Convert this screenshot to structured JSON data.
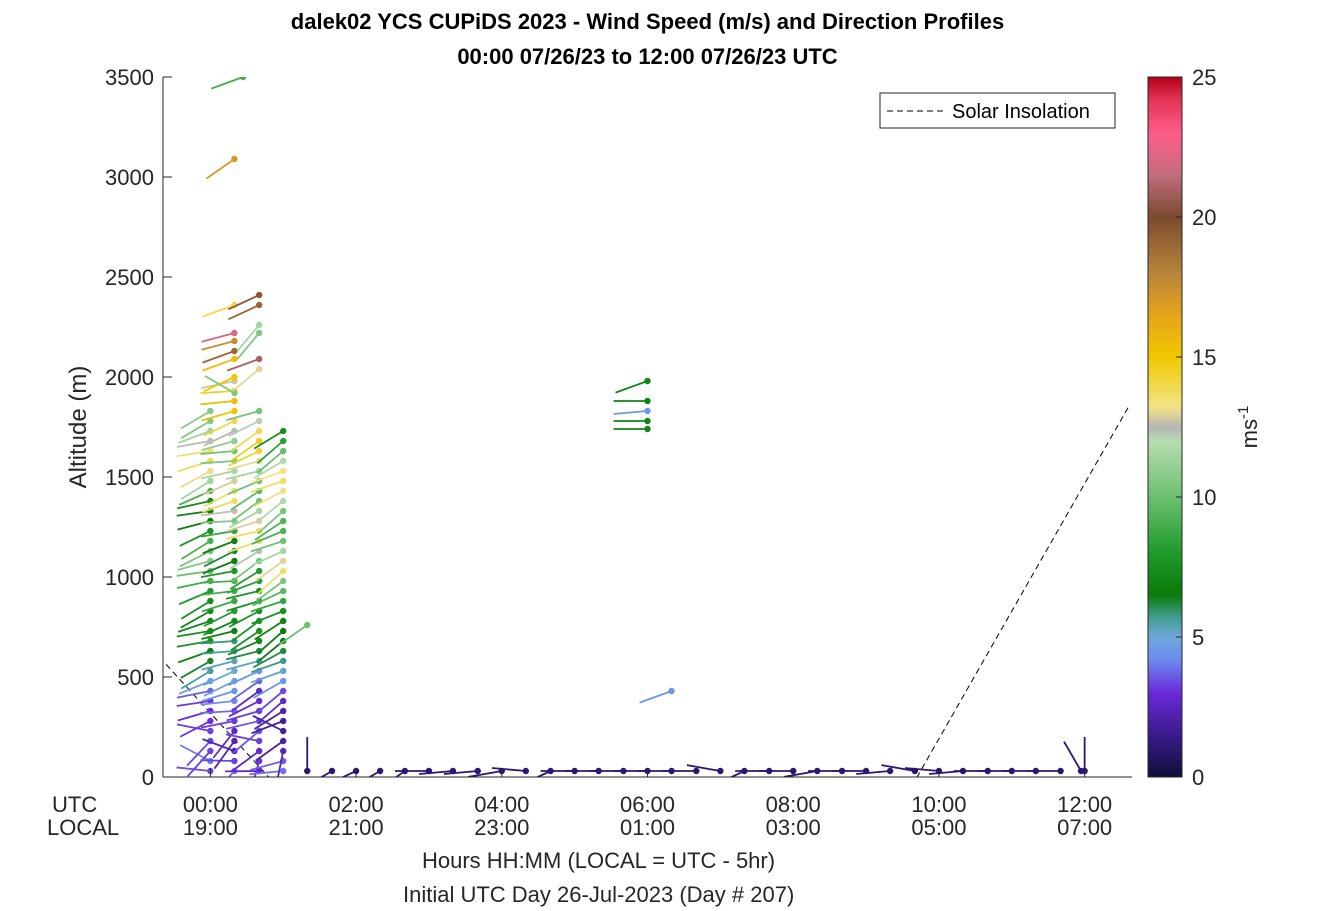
{
  "title": "dalek02 YCS CUPiDS 2023 - Wind Speed (m/s) and Direction Profiles",
  "subtitle": "00:00 07/26/23 to 12:00 07/26/23  UTC",
  "row_labels": {
    "utc": "UTC",
    "local": "LOCAL"
  },
  "xlabel": "Hours HH:MM  (LOCAL = UTC - 5hr)",
  "xlabel2": "Initial UTC Day 26-Jul-2023 (Day # 207)",
  "legend": {
    "label": "Solar Insolation"
  },
  "colorbar": {
    "label": "ms",
    "exponent": "-1",
    "min": 0,
    "max": 25,
    "ticks": [
      "0",
      "5",
      "10",
      "15",
      "20",
      "25"
    ]
  },
  "chart_data": {
    "type": "scatter",
    "ylabel": "Altitude (m)",
    "ylim": [
      0,
      3500
    ],
    "xlim_hours": [
      -0.65,
      12.65
    ],
    "yticks": [
      "0",
      "500",
      "1000",
      "1500",
      "2000",
      "2500",
      "3000",
      "3500"
    ],
    "xticks_utc": [
      "00:00",
      "02:00",
      "04:00",
      "06:00",
      "08:00",
      "10:00",
      "12:00"
    ],
    "xticks_local": [
      "19:00",
      "21:00",
      "23:00",
      "01:00",
      "03:00",
      "05:00",
      "07:00"
    ],
    "solar_insolation": [
      {
        "utc": -0.7,
        "alt": 600
      },
      {
        "utc": 0.8,
        "alt": 0
      },
      {
        "utc": 9.7,
        "alt": 0
      },
      {
        "utc": 12.6,
        "alt": 1850
      }
    ],
    "profiles": [
      {
        "utc": 0.0,
        "alt_min": 30,
        "alt_max": 1830,
        "step": 50,
        "dir": 250
      },
      {
        "utc": 0.33,
        "alt_min": 30,
        "alt_max": 2000,
        "step": 50,
        "dir": 255
      },
      {
        "utc": 0.67,
        "alt_min": 30,
        "alt_max": 1830,
        "step": 50,
        "dir": 245
      },
      {
        "utc": 1.0,
        "alt_min": 30,
        "alt_max": 1730,
        "step": 50,
        "dir": 240
      }
    ],
    "upper_points": [
      {
        "utc": 0.33,
        "alt": 2360,
        "speed": 14.0,
        "dir": 250
      },
      {
        "utc": 0.33,
        "alt": 2220,
        "speed": 22.0,
        "dir": 255
      },
      {
        "utc": 0.33,
        "alt": 2180,
        "speed": 17.5,
        "dir": 255
      },
      {
        "utc": 0.33,
        "alt": 2130,
        "speed": 19.0,
        "dir": 250
      },
      {
        "utc": 0.33,
        "alt": 2090,
        "speed": 15.5,
        "dir": 250
      },
      {
        "utc": 0.33,
        "alt": 2000,
        "speed": 15.0,
        "dir": 245
      },
      {
        "utc": 0.33,
        "alt": 1920,
        "speed": 10.5,
        "dir": 300
      },
      {
        "utc": 0.67,
        "alt": 2410,
        "speed": 19.5,
        "dir": 245
      },
      {
        "utc": 0.67,
        "alt": 2360,
        "speed": 19.0,
        "dir": 245
      },
      {
        "utc": 0.67,
        "alt": 2260,
        "speed": 11.5,
        "dir": 220
      },
      {
        "utc": 0.67,
        "alt": 2220,
        "speed": 10.5,
        "dir": 220
      },
      {
        "utc": 0.67,
        "alt": 2090,
        "speed": 21.0,
        "dir": 250
      },
      {
        "utc": 0.67,
        "alt": 2040,
        "speed": 13.0,
        "dir": 230
      },
      {
        "utc": 0.33,
        "alt": 3090,
        "speed": 17.0,
        "dir": 235
      },
      {
        "utc": 0.45,
        "alt": 3500,
        "speed": 9.0,
        "dir": 250
      },
      {
        "utc": 1.33,
        "alt": 760,
        "speed": 10.0,
        "dir": 235
      },
      {
        "utc": 6.0,
        "alt": 1980,
        "speed": 7.0,
        "dir": 250
      },
      {
        "utc": 6.0,
        "alt": 1880,
        "speed": 7.0,
        "dir": 270
      },
      {
        "utc": 6.0,
        "alt": 1830,
        "speed": 4.5,
        "dir": 265
      },
      {
        "utc": 6.0,
        "alt": 1780,
        "speed": 7.0,
        "dir": 270
      },
      {
        "utc": 6.0,
        "alt": 1740,
        "speed": 7.0,
        "dir": 270
      },
      {
        "utc": 6.33,
        "alt": 430,
        "speed": 4.5,
        "dir": 250
      }
    ],
    "surface": [
      {
        "utc": 1.33,
        "alt": 30,
        "speed": 1.0,
        "dir": 0
      },
      {
        "utc": 1.67,
        "alt": 30,
        "speed": 1.0,
        "dir": 240
      },
      {
        "utc": 2.0,
        "alt": 30,
        "speed": 1.0,
        "dir": 245
      },
      {
        "utc": 2.33,
        "alt": 30,
        "speed": 1.0,
        "dir": 240
      },
      {
        "utc": 2.67,
        "alt": 30,
        "speed": 1.0,
        "dir": 235
      },
      {
        "utc": 3.0,
        "alt": 30,
        "speed": 1.0,
        "dir": 270
      },
      {
        "utc": 3.33,
        "alt": 30,
        "speed": 1.0,
        "dir": 265
      },
      {
        "utc": 3.67,
        "alt": 30,
        "speed": 1.0,
        "dir": 265
      },
      {
        "utc": 4.0,
        "alt": 30,
        "speed": 1.0,
        "dir": 260
      },
      {
        "utc": 4.33,
        "alt": 30,
        "speed": 1.0,
        "dir": 275
      },
      {
        "utc": 4.67,
        "alt": 30,
        "speed": 1.0,
        "dir": 245
      },
      {
        "utc": 5.0,
        "alt": 30,
        "speed": 1.0,
        "dir": 270
      },
      {
        "utc": 5.33,
        "alt": 30,
        "speed": 1.0,
        "dir": 270
      },
      {
        "utc": 5.67,
        "alt": 30,
        "speed": 1.0,
        "dir": 270
      },
      {
        "utc": 6.0,
        "alt": 30,
        "speed": 1.0,
        "dir": 270
      },
      {
        "utc": 6.33,
        "alt": 30,
        "speed": 1.0,
        "dir": 270
      },
      {
        "utc": 6.67,
        "alt": 30,
        "speed": 1.0,
        "dir": 270
      },
      {
        "utc": 7.0,
        "alt": 30,
        "speed": 1.0,
        "dir": 280
      },
      {
        "utc": 7.33,
        "alt": 30,
        "speed": 1.0,
        "dir": 245
      },
      {
        "utc": 7.67,
        "alt": 30,
        "speed": 1.0,
        "dir": 270
      },
      {
        "utc": 8.0,
        "alt": 30,
        "speed": 1.0,
        "dir": 270
      },
      {
        "utc": 8.33,
        "alt": 30,
        "speed": 1.0,
        "dir": 260
      },
      {
        "utc": 8.67,
        "alt": 30,
        "speed": 1.0,
        "dir": 270
      },
      {
        "utc": 9.0,
        "alt": 30,
        "speed": 1.0,
        "dir": 270
      },
      {
        "utc": 9.33,
        "alt": 30,
        "speed": 1.0,
        "dir": 265
      },
      {
        "utc": 9.67,
        "alt": 30,
        "speed": 1.0,
        "dir": 280
      },
      {
        "utc": 10.0,
        "alt": 30,
        "speed": 1.0,
        "dir": 275
      },
      {
        "utc": 10.33,
        "alt": 30,
        "speed": 1.0,
        "dir": 265
      },
      {
        "utc": 10.67,
        "alt": 30,
        "speed": 1.0,
        "dir": 270
      },
      {
        "utc": 11.0,
        "alt": 30,
        "speed": 1.0,
        "dir": 270
      },
      {
        "utc": 11.33,
        "alt": 30,
        "speed": 1.0,
        "dir": 270
      },
      {
        "utc": 11.67,
        "alt": 30,
        "speed": 1.0,
        "dir": 270
      },
      {
        "utc": 11.95,
        "alt": 30,
        "speed": 1.0,
        "dir": 330
      },
      {
        "utc": 12.0,
        "alt": 30,
        "speed": 1.0,
        "dir": 0
      }
    ]
  }
}
